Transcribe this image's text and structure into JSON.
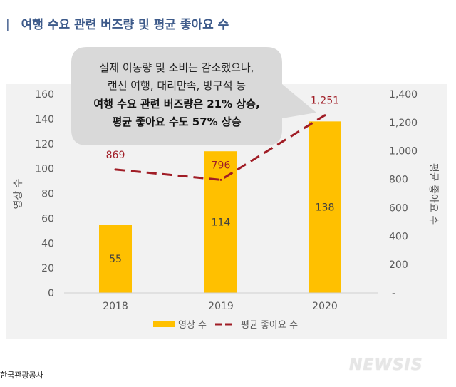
{
  "header": {
    "title": "여행 수요 관련 버즈량 및 평균 좋아요 수",
    "mark": "|"
  },
  "callout": {
    "lines": [
      "실제 이동량 및 소비는 감소했으나,",
      "랜선 여행, 대리만족, 방구석 등",
      "여행 수요 관련 버즈량은 21% 상승,",
      "평균 좋아요 수도 57% 상승"
    ]
  },
  "chart_data": {
    "type": "bar",
    "categories": [
      "2018",
      "2019",
      "2020"
    ],
    "series": [
      {
        "name": "영상 수",
        "kind": "bar",
        "axis": "left",
        "values": [
          55,
          114,
          138
        ],
        "labels": [
          "55",
          "114",
          "138"
        ],
        "color": "#ffc000"
      },
      {
        "name": "평균 좋아요 수",
        "kind": "line",
        "axis": "right",
        "values": [
          869,
          796,
          1251
        ],
        "labels": [
          "869",
          "796",
          "1,251"
        ],
        "color": "#a01d26",
        "dashed": true
      }
    ],
    "ylabel": "영상 수",
    "y2label": "평균 좋아요 수",
    "ylim": [
      0,
      160
    ],
    "y2lim": [
      0,
      1400
    ],
    "yticks": [
      "0",
      "20",
      "40",
      "60",
      "80",
      "100",
      "120",
      "140",
      "160"
    ],
    "y2ticks": [
      "-",
      "200",
      "400",
      "600",
      "800",
      "1,000",
      "1,200",
      "1,400"
    ],
    "grid": false,
    "legend": "bottom"
  },
  "footer": {
    "source": "한국관광공사",
    "logo": "NEWSIS"
  },
  "colors": {
    "panel": "#f2f2f2",
    "callout": "#d9d9d9",
    "axis_text": "#595959",
    "title": "#3d5a8a"
  }
}
